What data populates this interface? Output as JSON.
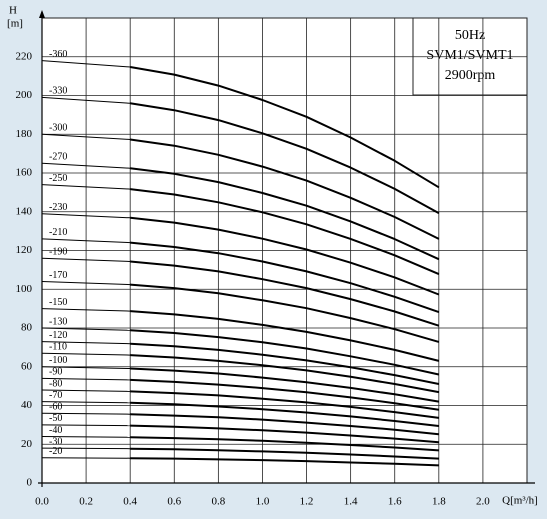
{
  "chart_data": {
    "type": "line",
    "title_lines": [
      "50Hz",
      "SVM1/SVMT1",
      "2900rpm"
    ],
    "y_label": "H",
    "y_unit": "[m]",
    "x_label": "Q[m³/h]",
    "x": [
      0,
      0.4,
      0.6,
      0.8,
      1.0,
      1.2,
      1.4,
      1.6,
      1.8
    ],
    "color": "#000000",
    "grid": true,
    "legend_position": "top-right",
    "xlim": [
      0,
      2.2
    ],
    "ylim": [
      0,
      240
    ],
    "xticks": [
      {
        "value": 0,
        "label": "0.0"
      },
      {
        "value": 0.2,
        "label": "0.2"
      },
      {
        "value": 0.4,
        "label": "0.4"
      },
      {
        "value": 0.6,
        "label": "0.6"
      },
      {
        "value": 0.8,
        "label": "0.8"
      },
      {
        "value": 1.0,
        "label": "1.0"
      },
      {
        "value": 1.2,
        "label": "1.2"
      },
      {
        "value": 1.4,
        "label": "1.4"
      },
      {
        "value": 1.6,
        "label": "1.6"
      },
      {
        "value": 1.8,
        "label": "1.8"
      },
      {
        "value": 2.0,
        "label": "2.0"
      }
    ],
    "yticks": [
      0,
      20,
      40,
      60,
      80,
      100,
      120,
      140,
      160,
      180,
      200,
      220
    ],
    "series": [
      {
        "name": "-360",
        "values": [
          218,
          214.7,
          210.8,
          205.1,
          197.7,
          189.0,
          178.3,
          166.3,
          152.6
        ]
      },
      {
        "name": "-330",
        "values": [
          199,
          196.0,
          192.4,
          187.3,
          180.5,
          172.5,
          162.8,
          151.8,
          139.3
        ]
      },
      {
        "name": "-300",
        "values": [
          180,
          177.3,
          174.1,
          169.4,
          163.3,
          156.1,
          147.2,
          137.3,
          126
        ]
      },
      {
        "name": "-270",
        "values": [
          165,
          162.5,
          159.6,
          155.3,
          149.7,
          143.1,
          135.0,
          125.9,
          115.5
        ]
      },
      {
        "name": "-250",
        "values": [
          154,
          151.7,
          148.9,
          144.9,
          139.7,
          133.5,
          126.0,
          117.5,
          107.8
        ]
      },
      {
        "name": "-230",
        "values": [
          139,
          136.9,
          134.4,
          130.8,
          126.1,
          120.5,
          113.7,
          106.1,
          97.3
        ]
      },
      {
        "name": "-210",
        "values": [
          126,
          124.1,
          121.8,
          118.6,
          114.3,
          109.2,
          103.1,
          96.1,
          88.2
        ]
      },
      {
        "name": "-190",
        "values": [
          116,
          114.3,
          112.2,
          109.2,
          105.2,
          100.6,
          94.9,
          88.5,
          81.2
        ]
      },
      {
        "name": "-170",
        "values": [
          104,
          102.4,
          100.6,
          97.9,
          94.3,
          90.2,
          85.1,
          79.4,
          72.8
        ]
      },
      {
        "name": "-150",
        "values": [
          90,
          88.7,
          87.0,
          84.7,
          81.6,
          78.0,
          73.6,
          68.7,
          63
        ]
      },
      {
        "name": "-130",
        "values": [
          80,
          78.8,
          77.4,
          75.3,
          72.6,
          69.4,
          65.4,
          61.0,
          56
        ]
      },
      {
        "name": "-120",
        "values": [
          73,
          71.9,
          70.6,
          68.7,
          66.2,
          63.3,
          59.7,
          55.7,
          51.1
        ]
      },
      {
        "name": "-110",
        "values": [
          67,
          66.0,
          64.8,
          63.0,
          60.8,
          58.1,
          54.8,
          51.1,
          46.9
        ]
      },
      {
        "name": "-100",
        "values": [
          60,
          59.1,
          58.0,
          56.5,
          54.4,
          52.0,
          49.1,
          45.8,
          42
        ]
      },
      {
        "name": "-90",
        "values": [
          54,
          53.2,
          52.2,
          50.8,
          49.0,
          46.8,
          44.2,
          41.2,
          37.8
        ]
      },
      {
        "name": "-80",
        "values": [
          48,
          47.3,
          46.4,
          45.2,
          43.5,
          41.6,
          39.3,
          36.6,
          33.6
        ]
      },
      {
        "name": "-70",
        "values": [
          42,
          41.4,
          40.6,
          39.5,
          38.1,
          36.4,
          34.4,
          32.0,
          29.4
        ]
      },
      {
        "name": "-60",
        "values": [
          36,
          35.5,
          34.8,
          33.9,
          32.7,
          31.2,
          29.4,
          27.5,
          25.2
        ]
      },
      {
        "name": "-50",
        "values": [
          30,
          29.6,
          29.0,
          28.2,
          27.2,
          26.0,
          24.5,
          22.9,
          21
        ]
      },
      {
        "name": "-40",
        "values": [
          24,
          23.6,
          23.2,
          22.6,
          21.8,
          20.8,
          19.6,
          18.3,
          16.8
        ]
      },
      {
        "name": "-30",
        "values": [
          18,
          17.7,
          17.4,
          16.9,
          16.3,
          15.6,
          14.7,
          13.7,
          12.6
        ]
      },
      {
        "name": "-20",
        "values": [
          13,
          12.8,
          12.6,
          12.2,
          11.8,
          11.3,
          10.6,
          9.9,
          9.1
        ]
      }
    ]
  }
}
